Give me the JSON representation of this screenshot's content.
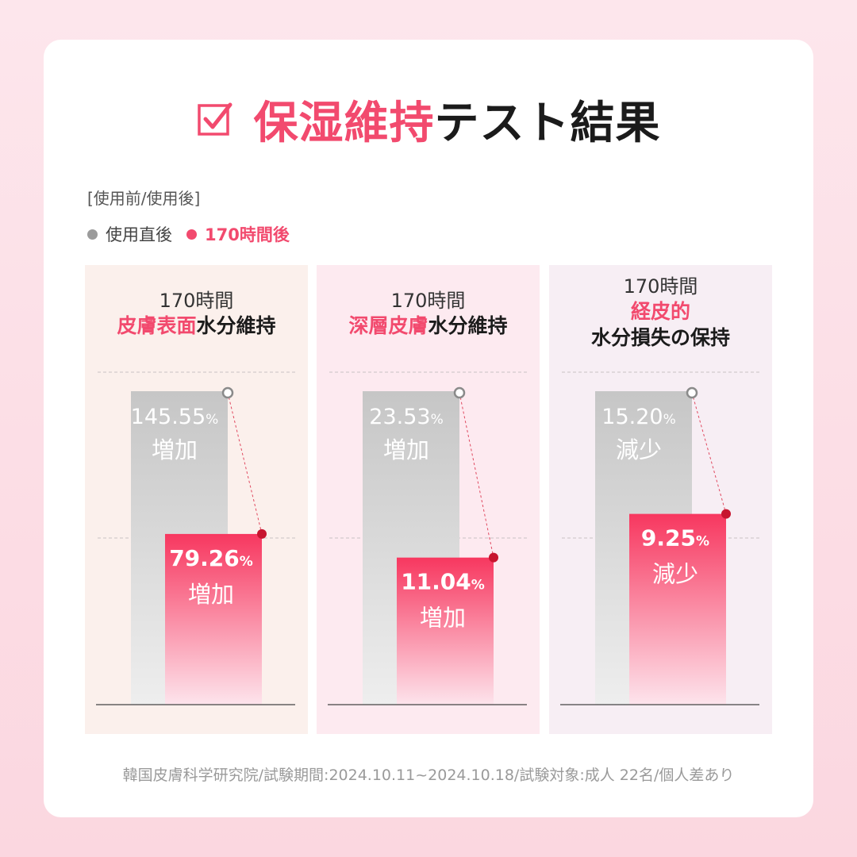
{
  "title": {
    "highlight": "保湿維持",
    "rest": "テスト結果"
  },
  "subhead": "[使用前/使用後]",
  "legend": [
    {
      "label": "使用直後",
      "color": "#9b9b9b"
    },
    {
      "label": "170時間後",
      "color": "#f24a6e"
    }
  ],
  "panels": [
    {
      "line1": "170時間",
      "pink": "皮膚表面",
      "black": "水分維持",
      "line3": ""
    },
    {
      "line1": "170時間",
      "pink": "深層皮膚",
      "black": "水分維持",
      "line3": ""
    },
    {
      "line1": "170時間",
      "pink": "経皮的",
      "black": "",
      "line3": "水分損失の保持"
    }
  ],
  "chart_data": {
    "type": "bar",
    "series_names": [
      "使用直後",
      "170時間後"
    ],
    "unit": "%",
    "groups": [
      {
        "before": {
          "value": 145.55,
          "text": "145.55",
          "label": "増加"
        },
        "after": {
          "value": 79.26,
          "text": "79.26",
          "label": "増加"
        }
      },
      {
        "before": {
          "value": 23.53,
          "text": "23.53",
          "label": "増加"
        },
        "after": {
          "value": 11.04,
          "text": "11.04",
          "label": "増加"
        }
      },
      {
        "before": {
          "value": 15.2,
          "text": "15.20",
          "label": "減少"
        },
        "after": {
          "value": 9.25,
          "text": "9.25",
          "label": "減少"
        }
      }
    ]
  },
  "footer": "韓国皮膚科学研究院/試験期間:2024.10.11~2024.10.18/試験対象:成人 22名/個人差あり"
}
